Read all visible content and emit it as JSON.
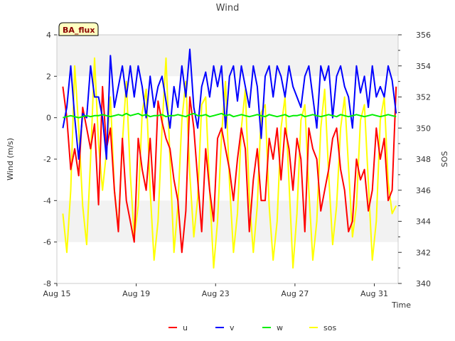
{
  "chart_data": {
    "type": "line",
    "title": "Wind",
    "station_label": "BA_flux",
    "xlabel": "Time",
    "ylabel_left": "Wind (m/s)",
    "ylabel_right": "SOS",
    "x_range_days": [
      15,
      32.2
    ],
    "x_ticks": [
      {
        "day": 15,
        "label": "Aug 15"
      },
      {
        "day": 19,
        "label": "Aug 19"
      },
      {
        "day": 23,
        "label": "Aug 23"
      },
      {
        "day": 27,
        "label": "Aug 27"
      },
      {
        "day": 31,
        "label": "Aug 31"
      }
    ],
    "ylim_left": [
      -8,
      4
    ],
    "yticks_left": [
      "-8",
      "-6",
      "-4",
      "-2",
      "0",
      "2",
      "4"
    ],
    "ylim_right": [
      340,
      356
    ],
    "yticks_right": [
      "340",
      "342",
      "344",
      "346",
      "348",
      "350",
      "352",
      "354",
      "356"
    ],
    "x": [
      15.3,
      15.5,
      15.7,
      15.9,
      16.1,
      16.3,
      16.5,
      16.7,
      16.9,
      17.1,
      17.3,
      17.5,
      17.7,
      17.9,
      18.1,
      18.3,
      18.5,
      18.7,
      18.9,
      19.1,
      19.3,
      19.5,
      19.7,
      19.9,
      20.1,
      20.3,
      20.5,
      20.7,
      20.9,
      21.1,
      21.3,
      21.5,
      21.7,
      21.9,
      22.1,
      22.3,
      22.5,
      22.7,
      22.9,
      23.1,
      23.3,
      23.5,
      23.7,
      23.9,
      24.1,
      24.3,
      24.5,
      24.7,
      24.9,
      25.1,
      25.3,
      25.5,
      25.7,
      25.9,
      26.1,
      26.3,
      26.5,
      26.7,
      26.9,
      27.1,
      27.3,
      27.5,
      27.7,
      27.9,
      28.1,
      28.3,
      28.5,
      28.7,
      28.9,
      29.1,
      29.3,
      29.5,
      29.7,
      29.9,
      30.1,
      30.3,
      30.5,
      30.7,
      30.9,
      31.1,
      31.3,
      31.5,
      31.7,
      31.9,
      32.1
    ],
    "series": [
      {
        "name": "u",
        "color": "#ff0000",
        "axis": "left",
        "values": [
          1.5,
          0.0,
          -2.5,
          -1.5,
          -2.8,
          0.5,
          -0.5,
          -1.5,
          -0.3,
          -4.2,
          1.5,
          -1.5,
          -0.5,
          -3.5,
          -5.5,
          -1.0,
          -4.0,
          -5.0,
          -6.0,
          -1.0,
          -2.5,
          -3.5,
          -1.0,
          -4.0,
          0.8,
          -0.2,
          -1.0,
          -1.5,
          -3.0,
          -4.0,
          -6.5,
          -4.5,
          1.0,
          -0.5,
          -3.0,
          -5.5,
          -1.5,
          -3.5,
          -5.0,
          -1.0,
          -0.5,
          -1.5,
          -2.5,
          -4.0,
          -2.0,
          -0.5,
          -1.5,
          -5.5,
          -3.0,
          -1.5,
          -4.0,
          -4.0,
          -1.0,
          -2.0,
          -0.5,
          -3.0,
          -0.5,
          -1.5,
          -3.5,
          -1.0,
          -2.0,
          -5.5,
          -0.5,
          -1.5,
          -2.0,
          -4.5,
          -3.5,
          -2.5,
          -1.0,
          -0.5,
          -2.5,
          -3.5,
          -5.5,
          -5.0,
          -2.0,
          -3.0,
          -2.5,
          -4.5,
          -3.5,
          -0.5,
          -2.0,
          -1.0,
          -4.0,
          -3.5,
          1.5
        ]
      },
      {
        "name": "v",
        "color": "#0000ff",
        "axis": "left",
        "values": [
          -0.5,
          0.5,
          2.5,
          0.0,
          -2.0,
          0.2,
          0.0,
          2.5,
          1.0,
          1.0,
          0.0,
          -2.0,
          3.0,
          0.5,
          1.5,
          2.5,
          1.0,
          2.5,
          1.0,
          2.5,
          1.5,
          0.0,
          2.0,
          0.5,
          1.5,
          2.0,
          0.8,
          -0.5,
          1.5,
          0.5,
          2.5,
          1.0,
          3.3,
          0.5,
          -0.5,
          1.5,
          2.2,
          1.0,
          2.5,
          1.5,
          2.5,
          -0.5,
          2.0,
          2.5,
          0.8,
          2.5,
          1.5,
          0.5,
          2.5,
          1.5,
          -1.0,
          2.0,
          2.5,
          1.0,
          2.5,
          2.0,
          1.0,
          2.5,
          1.5,
          1.0,
          0.5,
          2.0,
          2.5,
          1.0,
          -0.5,
          2.5,
          1.8,
          2.5,
          0.0,
          2.0,
          2.5,
          1.5,
          1.0,
          -0.5,
          2.5,
          1.2,
          2.0,
          0.5,
          2.5,
          1.0,
          1.5,
          1.0,
          2.5,
          1.8,
          0.2
        ]
      },
      {
        "name": "w",
        "color": "#00ee00",
        "axis": "left",
        "values": [
          0.0,
          0.05,
          0.1,
          0.05,
          0.0,
          0.05,
          0.1,
          0.05,
          0.1,
          0.1,
          0.15,
          0.1,
          0.05,
          0.1,
          0.15,
          0.1,
          0.2,
          0.1,
          0.15,
          0.2,
          0.1,
          0.15,
          0.05,
          0.1,
          0.1,
          0.15,
          0.05,
          0.1,
          0.1,
          0.15,
          0.1,
          0.05,
          0.15,
          0.2,
          0.1,
          0.1,
          0.15,
          0.05,
          0.1,
          0.15,
          0.2,
          0.1,
          0.15,
          0.05,
          0.1,
          0.15,
          0.1,
          0.05,
          0.1,
          0.15,
          0.1,
          0.05,
          0.15,
          0.1,
          0.05,
          0.1,
          0.15,
          0.05,
          0.1,
          0.1,
          0.15,
          0.05,
          0.1,
          0.15,
          0.1,
          0.05,
          0.1,
          0.15,
          0.1,
          0.05,
          0.15,
          0.1,
          0.05,
          0.1,
          0.15,
          0.1,
          0.05,
          0.1,
          0.15,
          0.1,
          0.05,
          0.1,
          0.15,
          0.1,
          0.05
        ]
      },
      {
        "name": "sos",
        "color": "#ffff00",
        "axis": "right",
        "values": [
          344.5,
          342.0,
          346.0,
          354.0,
          350.0,
          345.0,
          342.5,
          348.0,
          354.5,
          349.0,
          346.0,
          348.5,
          352.0,
          346.0,
          343.5,
          349.0,
          353.0,
          347.0,
          343.0,
          345.0,
          351.0,
          352.5,
          346.0,
          341.5,
          344.0,
          350.0,
          354.5,
          348.0,
          342.0,
          345.0,
          350.5,
          353.0,
          347.0,
          343.0,
          345.5,
          351.5,
          352.0,
          346.0,
          341.0,
          344.0,
          349.5,
          353.0,
          346.5,
          342.0,
          344.5,
          350.0,
          352.5,
          345.5,
          342.0,
          345.0,
          351.0,
          351.5,
          345.0,
          341.5,
          344.0,
          350.0,
          352.0,
          346.5,
          341.0,
          344.5,
          350.5,
          351.5,
          346.0,
          341.5,
          344.0,
          350.0,
          352.5,
          347.0,
          342.5,
          345.0,
          350.0,
          352.0,
          347.5,
          343.0,
          345.0,
          350.5,
          351.5,
          346.5,
          341.5,
          344.0,
          350.5,
          352.0,
          346.5,
          344.5,
          345.0
        ]
      }
    ],
    "legend_position": "bottom-center",
    "grid": false,
    "background_bands": true
  }
}
